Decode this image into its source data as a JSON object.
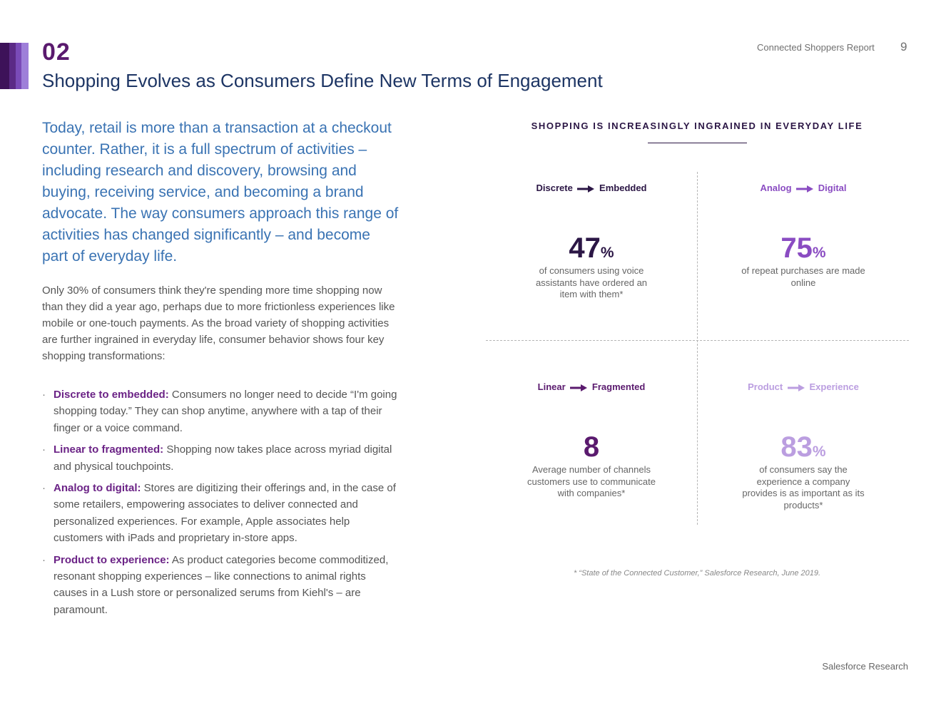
{
  "header": {
    "section_number": "02",
    "section_title": "Shopping Evolves as Consumers Define New Terms of Engagement",
    "report_name": "Connected Shoppers Report",
    "page_number": "9",
    "stripe_colors": [
      "#3d1259",
      "#5b2a86",
      "#7a4bb8",
      "#9e7fd9"
    ]
  },
  "main": {
    "lead": "Today, retail is more than a transaction at a checkout counter. Rather, it is a full spectrum of activities – including research and discovery, browsing and buying, receiving service, and becoming a brand advocate. The way consumers approach this range of activities has changed significantly – and become part of everyday life.",
    "body": "Only 30% of consumers think they're spending more time shopping now than they did a year ago, perhaps due to more frictionless experiences like mobile or one-touch payments. As the broad variety of shopping activities are further ingrained in everyday life, consumer behavior shows four key shopping transformations:",
    "bullet_marker": "·",
    "bullets": [
      {
        "term": "Discrete to embedded:",
        "text": " Consumers no longer need to decide “I'm going shopping today.” They can shop anytime, anywhere with a tap of their finger or a voice command."
      },
      {
        "term": "Linear to fragmented:",
        "text": " Shopping now takes place across myriad digital and physical touchpoints."
      },
      {
        "term": "Analog to digital:",
        "text": " Stores are digitizing their offerings and, in the case of some retailers, empowering associates to deliver connected and personalized experiences. For example, Apple associates help customers with iPads and proprietary in-store apps."
      },
      {
        "term": "Product to experience:",
        "text": " As product categories become commoditized, resonant shopping experiences – like connections to animal rights causes in a Lush store or personalized serums from Kiehl's – are paramount."
      }
    ]
  },
  "infographic": {
    "title": "SHOPPING IS INCREASINGLY INGRAINED IN EVERYDAY LIFE",
    "quadrants": [
      {
        "from": "Discrete",
        "to": "Embedded",
        "value": "47",
        "unit": "%",
        "desc": "of consumers using voice assistants have ordered an item with them*",
        "label_color": "#2b1645",
        "value_color": "#2b1645"
      },
      {
        "from": "Analog",
        "to": "Digital",
        "value": "75",
        "unit": "%",
        "desc": "of repeat purchases are made online",
        "label_color": "#8a4cc2",
        "value_color": "#8a4cc2"
      },
      {
        "from": "Linear",
        "to": "Fragmented",
        "value": "8",
        "unit": "",
        "desc": "Average number of channels customers use to communicate with companies*",
        "label_color": "#5a1a6e",
        "value_color": "#5a1a6e"
      },
      {
        "from": "Product",
        "to": "Experience",
        "value": "83",
        "unit": "%",
        "desc": "of consumers say the experience a company provides is as important as its products*",
        "label_color": "#bb9ee0",
        "value_color": "#bb9ee0"
      }
    ],
    "footnote": "* “State of the Connected Customer,” Salesforce Research, June 2019."
  },
  "footer": {
    "brand": "Salesforce Research"
  }
}
